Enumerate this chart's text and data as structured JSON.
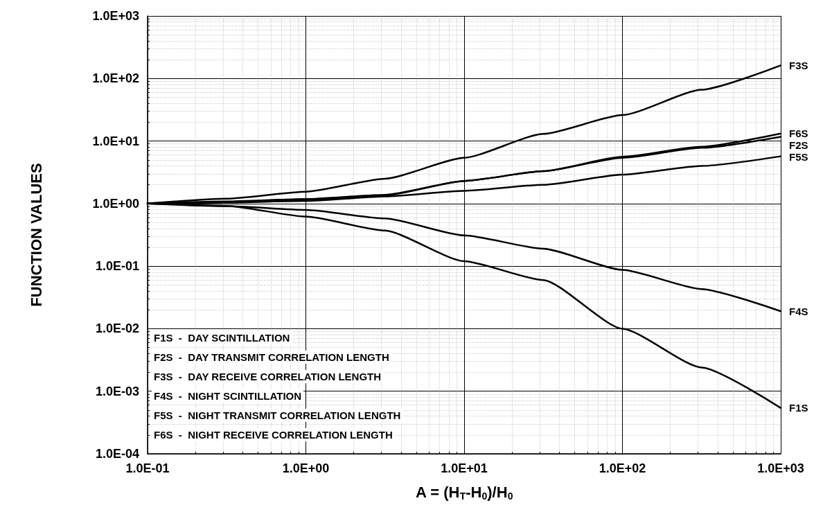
{
  "chart_data": {
    "type": "line",
    "xlabel": "A = (H$_{T}$-H$_{0}$)/H$_{0}$",
    "ylabel": "FUNCTION VALUES",
    "log": "xy",
    "grid": true,
    "marker": "none",
    "line_style": "solid",
    "legend": false,
    "x": [
      0.1,
      0.316,
      1,
      3.16,
      10,
      31.6,
      100,
      316,
      1000
    ],
    "xlim": [
      0.1,
      1000
    ],
    "ylim": [
      0.0001,
      1000
    ],
    "xticks": [
      {
        "value": 0.1,
        "label": "1.0E-01"
      },
      {
        "value": 1,
        "label": "1.0E+00"
      },
      {
        "value": 10,
        "label": "1.0E+01"
      },
      {
        "value": 100,
        "label": "1.0E+02"
      },
      {
        "value": 1000,
        "label": "1.0E+03"
      }
    ],
    "yticks": [
      {
        "value": 0.0001,
        "label": "1.0E-04"
      },
      {
        "value": 0.001,
        "label": "1.0E-03"
      },
      {
        "value": 0.01,
        "label": "1.0E-02"
      },
      {
        "value": 0.1,
        "label": "1.0E-01"
      },
      {
        "value": 1,
        "label": "1.0E+00"
      },
      {
        "value": 10,
        "label": "1.0E+01"
      },
      {
        "value": 100,
        "label": "1.0E+02"
      },
      {
        "value": 1000,
        "label": "1.0E+03"
      }
    ],
    "series": [
      {
        "name": "F1S",
        "color": "#000000",
        "values": [
          1,
          0.92,
          0.62,
          0.37,
          0.12,
          0.06,
          0.01,
          0.0024,
          0.00054
        ]
      },
      {
        "name": "F2S",
        "color": "#000000",
        "values": [
          1,
          1.07,
          1.17,
          1.35,
          2.3,
          3.3,
          5.4,
          7.8,
          11.7
        ]
      },
      {
        "name": "F3S",
        "color": "#000000",
        "values": [
          1,
          1.2,
          1.55,
          2.5,
          5.4,
          13,
          26,
          66,
          162
        ]
      },
      {
        "name": "F4S",
        "color": "#000000",
        "values": [
          1,
          0.91,
          0.79,
          0.58,
          0.31,
          0.19,
          0.087,
          0.043,
          0.019
        ]
      },
      {
        "name": "F5S",
        "color": "#000000",
        "values": [
          1,
          1.04,
          1.1,
          1.3,
          1.6,
          2.0,
          2.9,
          4.0,
          5.7
        ]
      },
      {
        "name": "F6S",
        "color": "#000000",
        "values": [
          1,
          1.08,
          1.18,
          1.38,
          2.3,
          3.3,
          5.6,
          8.1,
          13.2
        ]
      }
    ],
    "annotations": [
      "F1S  -  DAY SCINTILLATION",
      "F2S  -  DAY TRANSMIT CORRELATION LENGTH",
      "F3S  -  DAY RECEIVE CORRELATION LENGTH",
      "F4S  -  NIGHT SCINTILLATION",
      "F5S  -  NIGHT TRANSMIT CORRELATION LENGTH",
      "F6S  -  NIGHT RECEIVE CORRELATION LENGTH"
    ]
  }
}
